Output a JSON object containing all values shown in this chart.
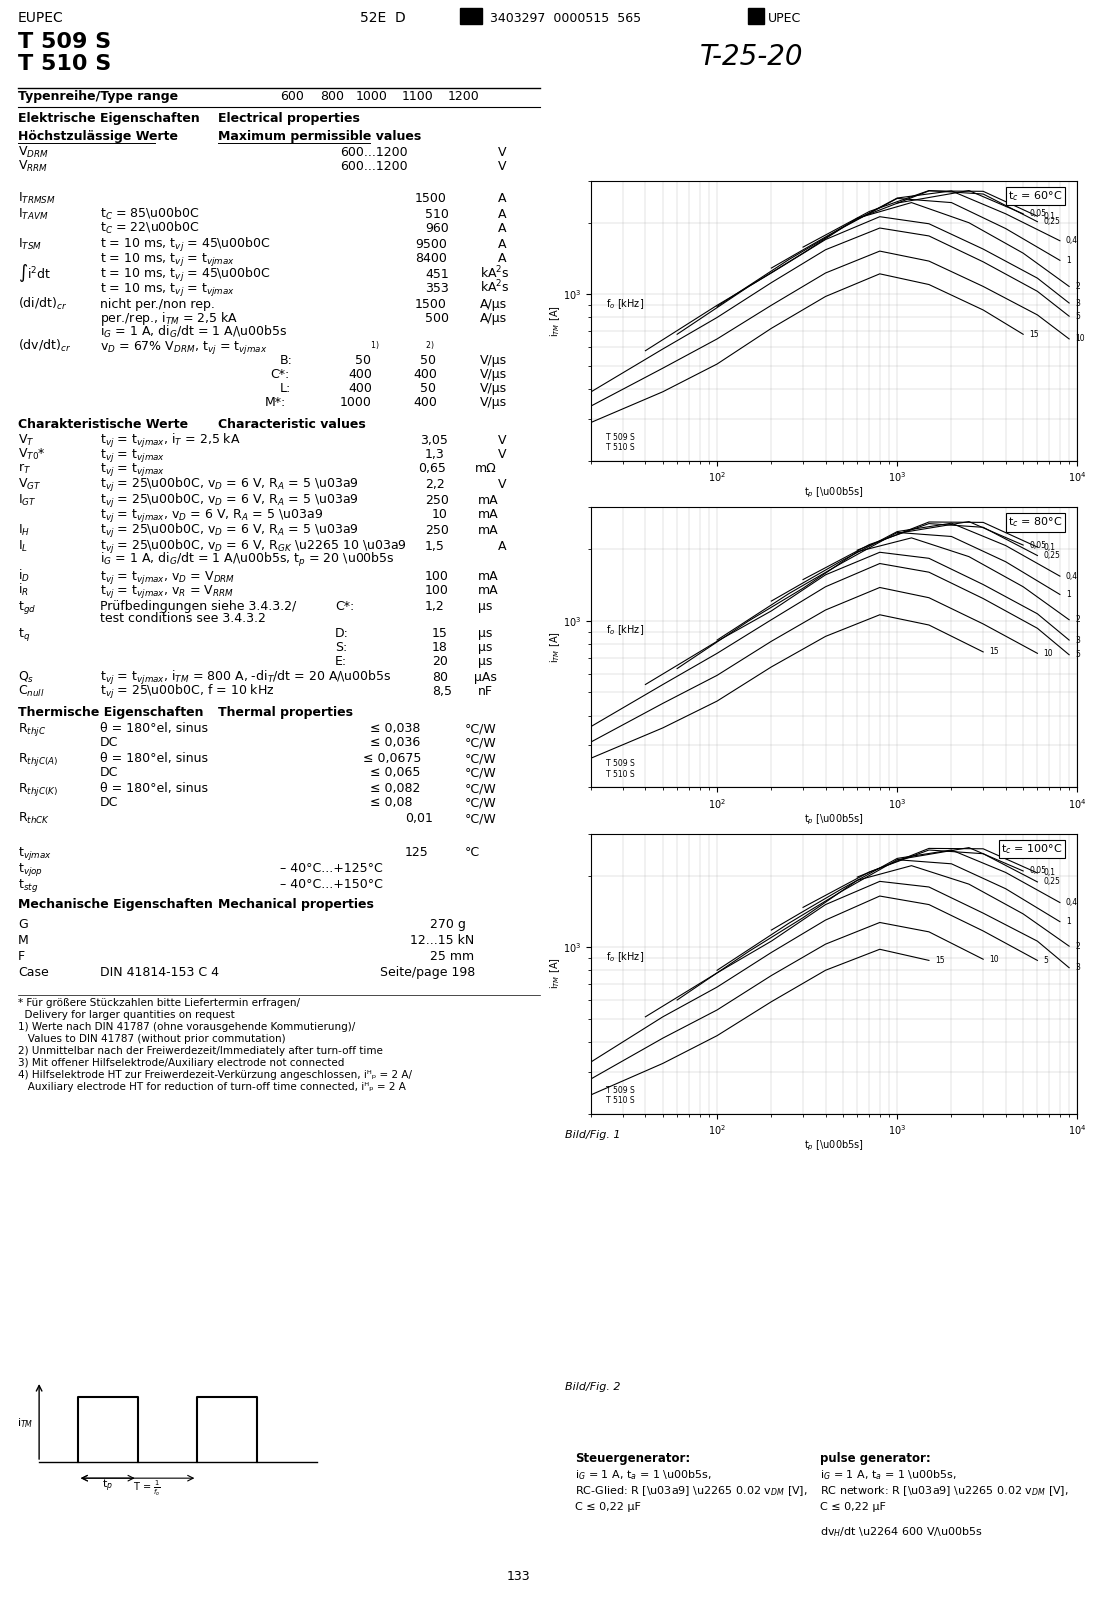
{
  "title_eupec": "EUPEC",
  "title_52e": "52E  D",
  "title_barcode": "3403297  0000515  565",
  "title_upec": "UPEC",
  "title_handwritten": "T-25-20",
  "model1": "T 509 S",
  "model2": "T 510 S",
  "type_range_label": "Typenreihe/Type range",
  "section1_de": "Elektrische Eigenschaften",
  "section1_en": "Electrical properties",
  "section2_de": "Höchstzulässige Werte",
  "section2_en": "Maximum permissible values",
  "char_de": "Charakteristische Werte",
  "char_en": "Characteristic values",
  "thermal_de": "Thermische Eigenschaften",
  "thermal_en": "Thermal properties",
  "mech_de": "Mechanische Eigenschaften",
  "mech_en": "Mechanical properties",
  "page_num": "133",
  "steuer_label": "Steuergenerator:",
  "steuer_text1": "iᴳ = 1 A, tₐ = 1 µs,",
  "steuer_text2": "RC-Glied: R [Ω] ≥ 0.02 vₛM [V],",
  "steuer_text3": "C ≤ 0,22 µF",
  "pulse_label": "pulse generator:",
  "pulse_text1": "iᴳ = 1 A, tₐ = 1 µs,",
  "pulse_text2": "RC network: R [Ω] ≥ 0.02 vₛM [V],",
  "pulse_text3": "C ≤ 0,22 µF",
  "dvhdt_label": "dvᴴ/dt ≤ 600 V/µs"
}
